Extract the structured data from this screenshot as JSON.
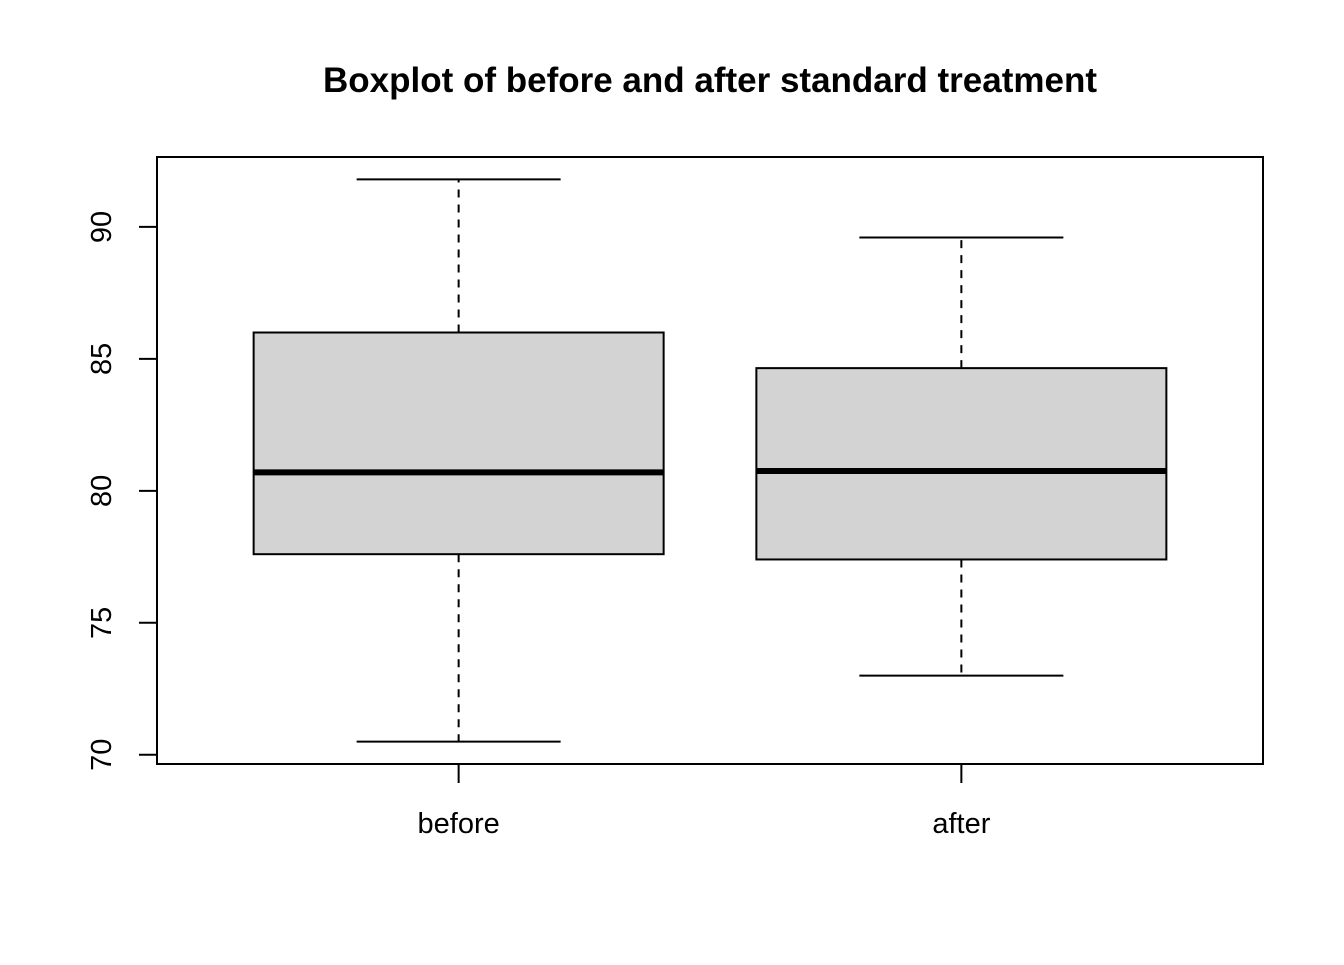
{
  "chart_data": {
    "type": "box",
    "title": "Boxplot of before and after standard treatment",
    "xlabel": "",
    "ylabel": "",
    "categories": [
      "before",
      "after"
    ],
    "boxes": [
      {
        "category": "before",
        "min": 70.5,
        "q1": 77.6,
        "median": 80.7,
        "q3": 86.0,
        "max": 91.8
      },
      {
        "category": "after",
        "min": 73.0,
        "q1": 77.4,
        "median": 80.75,
        "q3": 84.65,
        "max": 89.6
      }
    ],
    "y_ticks": [
      70,
      75,
      80,
      85,
      90
    ],
    "ylim": [
      69.65,
      92.65
    ],
    "grid": false,
    "legend": "none",
    "colors": {
      "box_fill": "#d3d3d3",
      "stroke": "#000000",
      "background": "#ffffff"
    }
  }
}
